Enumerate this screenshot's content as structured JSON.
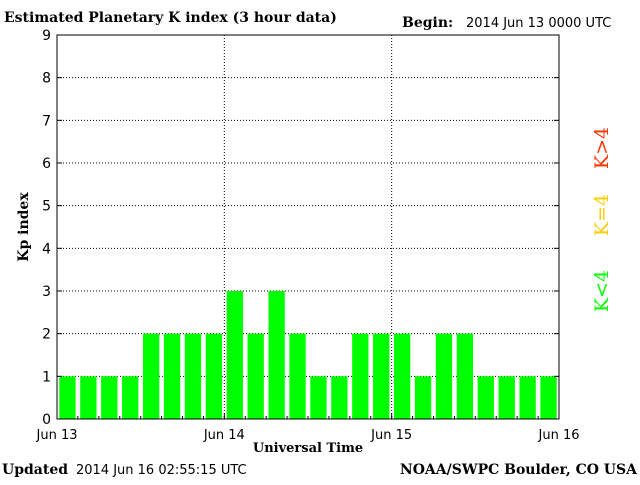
{
  "header": {
    "title": "Estimated Planetary K index (3 hour data)",
    "begin_label": "Begin:",
    "begin_value": "2014 Jun 13 0000 UTC"
  },
  "footer": {
    "updated_label": "Updated",
    "updated_value": "2014 Jun 16 02:55:15 UTC",
    "source": "NOAA/SWPC Boulder, CO USA"
  },
  "legend": {
    "low": "K<4",
    "mid": "K=4",
    "high": "K>4"
  },
  "colors": {
    "low": "#00ff00",
    "mid": "#ffcc00",
    "high": "#ff3300",
    "axis": "#000000"
  },
  "chart_data": {
    "type": "bar",
    "xlabel": "Universal Time",
    "ylabel": "Kp index",
    "ylim": [
      0,
      9
    ],
    "y_ticks": [
      "0",
      "1",
      "2",
      "3",
      "4",
      "5",
      "6",
      "7",
      "8",
      "9"
    ],
    "x_tick_labels": [
      "Jun 13",
      "Jun 14",
      "Jun 15",
      "Jun 16"
    ],
    "grid": true,
    "interval_hours": 3,
    "values": [
      1,
      1,
      1,
      1,
      2,
      2,
      2,
      2,
      3,
      2,
      3,
      2,
      1,
      1,
      2,
      2,
      2,
      1,
      2,
      2,
      1,
      1,
      1,
      1
    ]
  }
}
